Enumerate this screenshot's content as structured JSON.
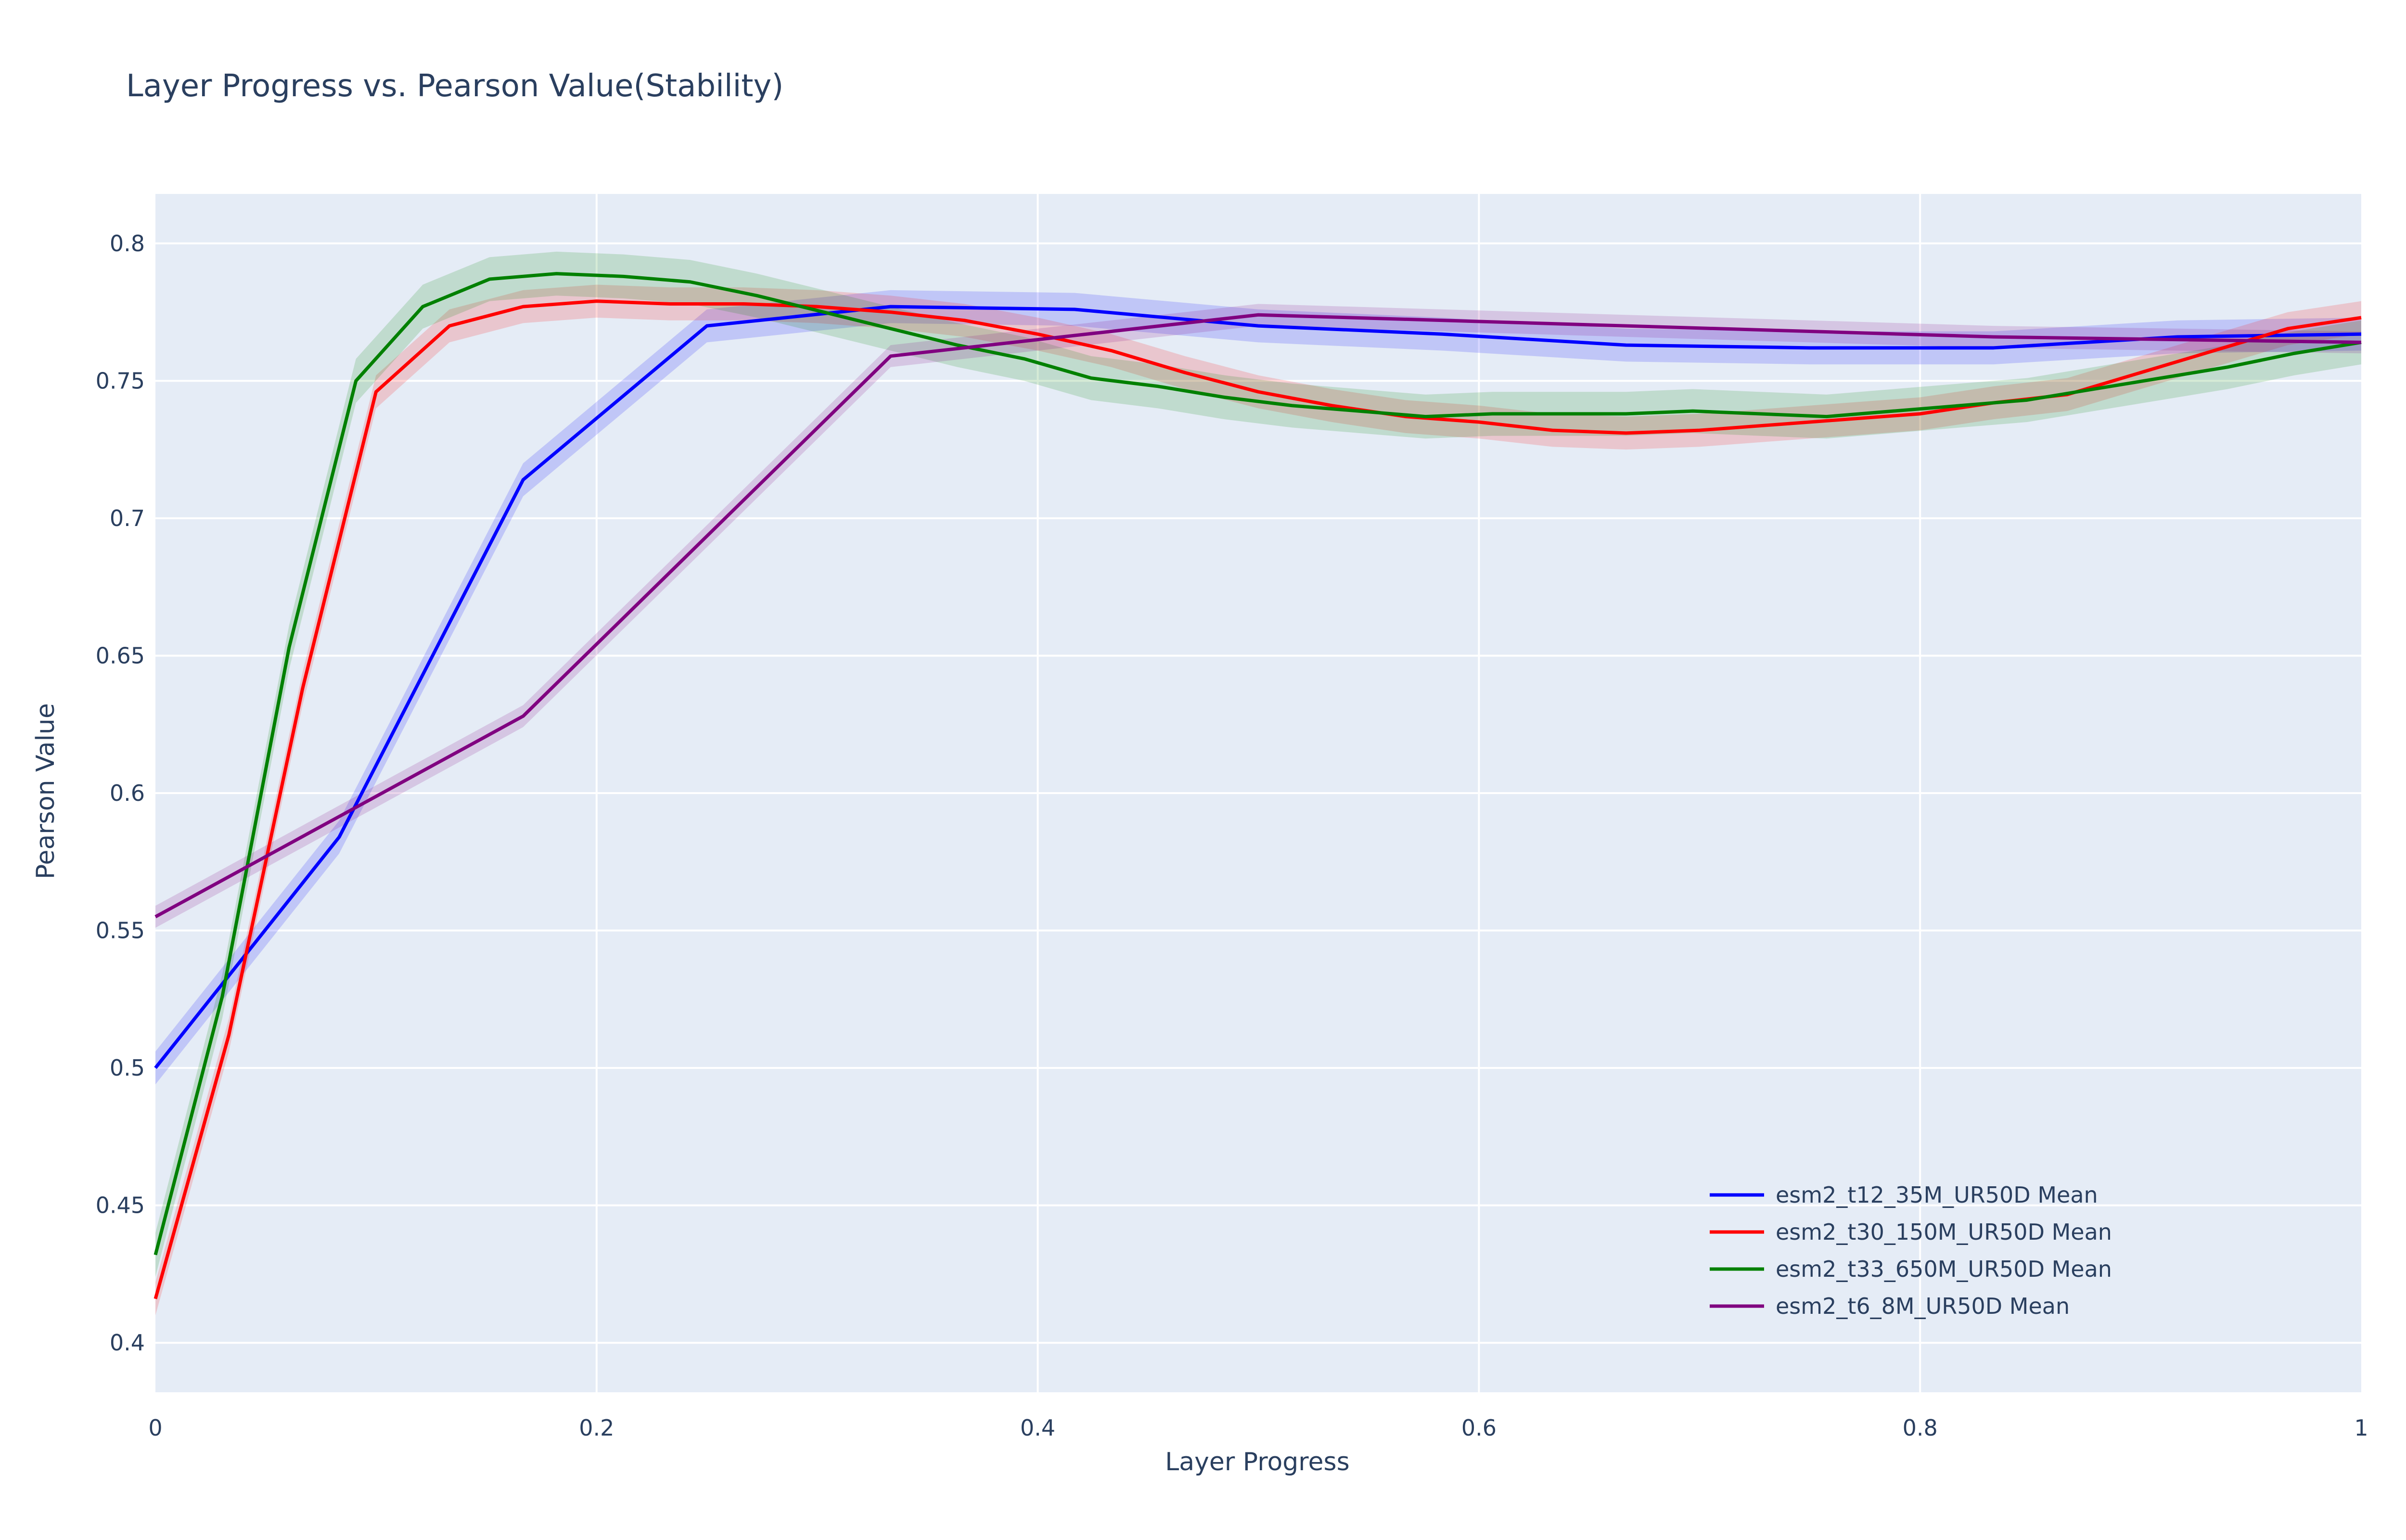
{
  "chart_data": {
    "type": "line",
    "title": "Layer Progress vs. Pearson Value(Stability)",
    "xlabel": "Layer Progress",
    "ylabel": "Pearson Value",
    "xlim": [
      0,
      1
    ],
    "ylim": [
      0.382,
      0.818
    ],
    "xticks": [
      0,
      0.2,
      0.4,
      0.6,
      0.8,
      1
    ],
    "xtick_labels": [
      "0",
      "0.2",
      "0.4",
      "0.6",
      "0.8",
      "1"
    ],
    "yticks": [
      0.4,
      0.45,
      0.5,
      0.55,
      0.6,
      0.65,
      0.7,
      0.75,
      0.8
    ],
    "ytick_labels": [
      "0.4",
      "0.45",
      "0.5",
      "0.55",
      "0.6",
      "0.65",
      "0.7",
      "0.75",
      "0.8"
    ],
    "grid": true,
    "legend_position": "bottom-right",
    "background": "#e5ecf6",
    "series": [
      {
        "name": "esm2_t12_35M_UR50D Mean",
        "color": "#0000ff",
        "band": 0.006,
        "x": [
          0,
          0.0833,
          0.1667,
          0.25,
          0.3333,
          0.4167,
          0.5,
          0.5833,
          0.6667,
          0.75,
          0.8333,
          0.9167,
          1
        ],
        "y": [
          0.5,
          0.584,
          0.714,
          0.77,
          0.777,
          0.776,
          0.77,
          0.767,
          0.763,
          0.762,
          0.762,
          0.766,
          0.767
        ]
      },
      {
        "name": "esm2_t30_150M_UR50D Mean",
        "color": "#ff0000",
        "band": 0.006,
        "x": [
          0,
          0.0333,
          0.0667,
          0.1,
          0.1333,
          0.1667,
          0.2,
          0.2333,
          0.2667,
          0.3,
          0.3333,
          0.3667,
          0.4,
          0.4333,
          0.4667,
          0.5,
          0.5333,
          0.5667,
          0.6,
          0.6333,
          0.6667,
          0.7,
          0.7333,
          0.7667,
          0.8,
          0.8333,
          0.8667,
          0.9,
          0.9333,
          0.9667,
          1
        ],
        "y": [
          0.416,
          0.512,
          0.638,
          0.746,
          0.77,
          0.777,
          0.779,
          0.778,
          0.778,
          0.777,
          0.775,
          0.772,
          0.767,
          0.761,
          0.753,
          0.746,
          0.741,
          0.737,
          0.735,
          0.732,
          0.731,
          0.732,
          0.734,
          0.736,
          0.738,
          0.742,
          0.745,
          0.753,
          0.761,
          0.769,
          0.773
        ]
      },
      {
        "name": "esm2_t33_650M_UR50D Mean",
        "color": "#008000",
        "band": 0.008,
        "x": [
          0,
          0.0303,
          0.0606,
          0.0909,
          0.1212,
          0.1515,
          0.1818,
          0.2121,
          0.2424,
          0.2727,
          0.303,
          0.3333,
          0.3636,
          0.3939,
          0.4242,
          0.4545,
          0.4848,
          0.5152,
          0.5455,
          0.5758,
          0.6061,
          0.6364,
          0.6667,
          0.697,
          0.7273,
          0.7576,
          0.7879,
          0.8182,
          0.8485,
          0.8788,
          0.9091,
          0.9394,
          0.9697,
          1
        ],
        "y": [
          0.432,
          0.526,
          0.653,
          0.75,
          0.777,
          0.787,
          0.789,
          0.788,
          0.786,
          0.781,
          0.775,
          0.769,
          0.763,
          0.758,
          0.751,
          0.748,
          0.744,
          0.741,
          0.739,
          0.737,
          0.738,
          0.738,
          0.738,
          0.739,
          0.738,
          0.737,
          0.739,
          0.741,
          0.743,
          0.747,
          0.751,
          0.755,
          0.76,
          0.764
        ]
      },
      {
        "name": "esm2_t6_8M_UR50D Mean",
        "color": "#800080",
        "band": 0.004,
        "x": [
          0,
          0.1667,
          0.3333,
          0.5,
          0.6667,
          0.8333,
          1
        ],
        "y": [
          0.555,
          0.628,
          0.759,
          0.774,
          0.77,
          0.766,
          0.764
        ]
      }
    ]
  }
}
